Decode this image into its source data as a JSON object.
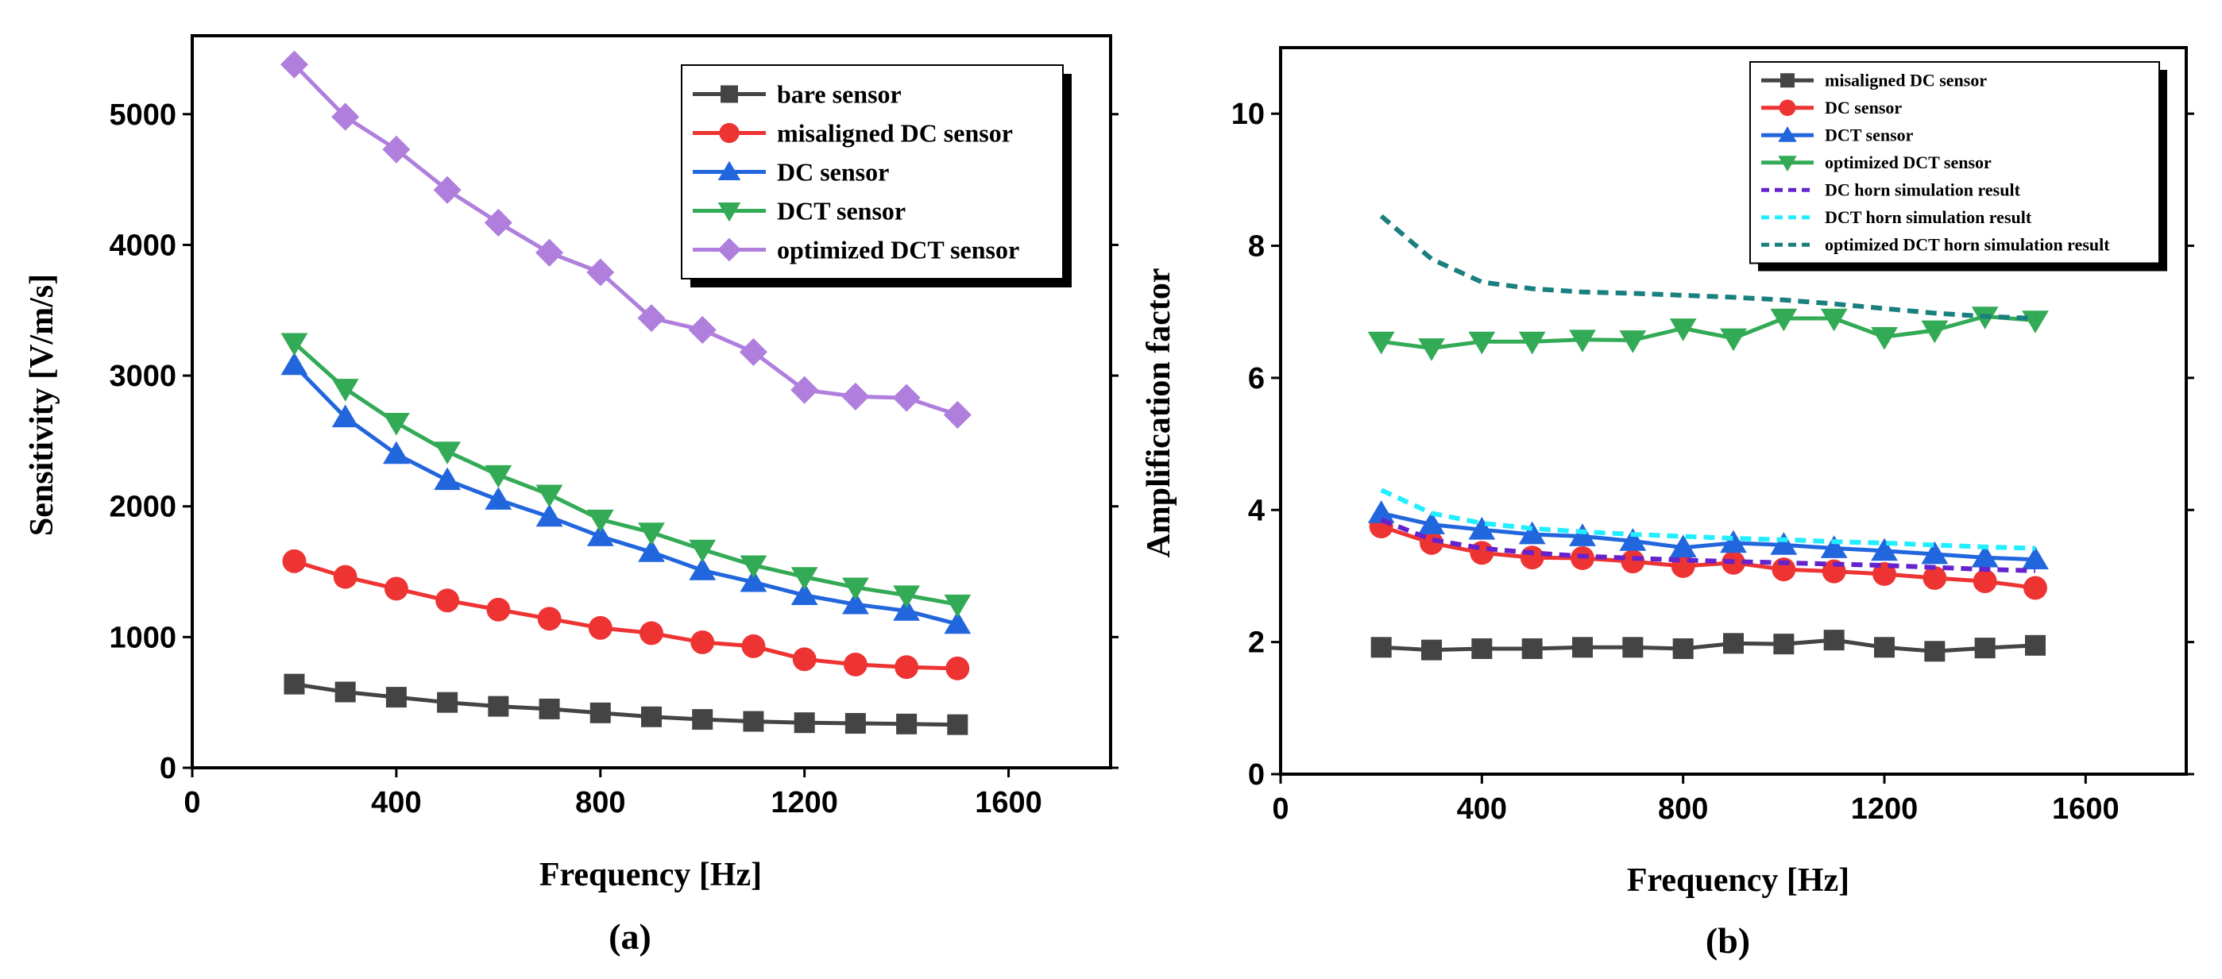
{
  "chart_data": [
    {
      "type": "line",
      "panel_label": "(a)",
      "xlabel": "Frequency [Hz]",
      "ylabel": "Sensitivity [V/m/s]",
      "xlim": [
        0,
        1800
      ],
      "ylim": [
        0,
        5600
      ],
      "xticks": [
        0,
        400,
        800,
        1200,
        1600
      ],
      "yticks": [
        0,
        1000,
        2000,
        3000,
        4000,
        5000
      ],
      "legend_position": "top-right",
      "grid": false,
      "x": [
        200,
        300,
        400,
        500,
        600,
        700,
        800,
        900,
        1000,
        1100,
        1200,
        1300,
        1400,
        1500
      ],
      "series": [
        {
          "name": "bare sensor",
          "color": "#444444",
          "marker": "square",
          "values": [
            640,
            580,
            540,
            500,
            470,
            450,
            420,
            390,
            370,
            355,
            345,
            340,
            335,
            330
          ]
        },
        {
          "name": "misaligned DC sensor",
          "color": "#ee3333",
          "marker": "circle",
          "values": [
            1580,
            1460,
            1370,
            1280,
            1210,
            1140,
            1070,
            1030,
            960,
            930,
            830,
            790,
            770,
            760
          ]
        },
        {
          "name": "DC sensor",
          "color": "#2266dd",
          "marker": "triangle-up",
          "values": [
            3080,
            2680,
            2400,
            2200,
            2050,
            1920,
            1770,
            1650,
            1510,
            1420,
            1320,
            1250,
            1200,
            1100
          ]
        },
        {
          "name": "DCT sensor",
          "color": "#33aa55",
          "marker": "triangle-down",
          "values": [
            3250,
            2900,
            2640,
            2420,
            2240,
            2090,
            1900,
            1800,
            1670,
            1550,
            1460,
            1380,
            1320,
            1250
          ]
        },
        {
          "name": "optimized DCT sensor",
          "color": "#b07fdd",
          "marker": "diamond",
          "values": [
            5380,
            4980,
            4730,
            4420,
            4170,
            3940,
            3790,
            3440,
            3350,
            3180,
            2890,
            2840,
            2830,
            2700
          ]
        }
      ]
    },
    {
      "type": "line",
      "panel_label": "(b)",
      "xlabel": "Frequency [Hz]",
      "ylabel": "Amplification factor",
      "xlim": [
        0,
        1800
      ],
      "ylim": [
        0,
        11
      ],
      "xticks": [
        0,
        400,
        800,
        1200,
        1600
      ],
      "yticks": [
        0,
        2,
        4,
        6,
        8,
        10
      ],
      "legend_position": "top-right",
      "grid": false,
      "x": [
        200,
        300,
        400,
        500,
        600,
        700,
        800,
        900,
        1000,
        1100,
        1200,
        1300,
        1400,
        1500
      ],
      "series": [
        {
          "name": "misaligned DC sensor",
          "color": "#444444",
          "marker": "square",
          "values": [
            1.92,
            1.88,
            1.9,
            1.9,
            1.92,
            1.92,
            1.9,
            1.98,
            1.97,
            2.03,
            1.92,
            1.86,
            1.91,
            1.95
          ]
        },
        {
          "name": "DC sensor",
          "color": "#ee3333",
          "marker": "circle",
          "values": [
            3.75,
            3.5,
            3.35,
            3.28,
            3.27,
            3.22,
            3.15,
            3.2,
            3.1,
            3.07,
            3.03,
            2.97,
            2.92,
            2.82
          ]
        },
        {
          "name": "DCT sensor",
          "color": "#2266dd",
          "marker": "triangle-up",
          "values": [
            3.95,
            3.78,
            3.7,
            3.63,
            3.6,
            3.53,
            3.43,
            3.5,
            3.47,
            3.42,
            3.38,
            3.33,
            3.28,
            3.25
          ]
        },
        {
          "name": "optimized DCT sensor",
          "color": "#33aa55",
          "marker": "triangle-down",
          "values": [
            6.55,
            6.45,
            6.55,
            6.55,
            6.58,
            6.57,
            6.75,
            6.6,
            6.9,
            6.9,
            6.62,
            6.72,
            6.93,
            6.87
          ]
        },
        {
          "name": "DC horn simulation result",
          "color": "#6622cc",
          "dash": true,
          "values": [
            3.85,
            3.55,
            3.42,
            3.35,
            3.3,
            3.27,
            3.24,
            3.22,
            3.2,
            3.18,
            3.16,
            3.13,
            3.1,
            3.08
          ]
        },
        {
          "name": "DCT horn simulation result",
          "color": "#22eeff",
          "dash": true,
          "values": [
            4.3,
            3.95,
            3.8,
            3.72,
            3.67,
            3.63,
            3.6,
            3.57,
            3.55,
            3.52,
            3.5,
            3.47,
            3.44,
            3.42
          ]
        },
        {
          "name": "optimized DCT horn simulation result",
          "color": "#1a7f7f",
          "dash": true,
          "values": [
            8.45,
            7.8,
            7.45,
            7.35,
            7.3,
            7.28,
            7.25,
            7.22,
            7.18,
            7.12,
            7.05,
            6.98,
            6.93,
            6.9
          ]
        }
      ]
    }
  ]
}
